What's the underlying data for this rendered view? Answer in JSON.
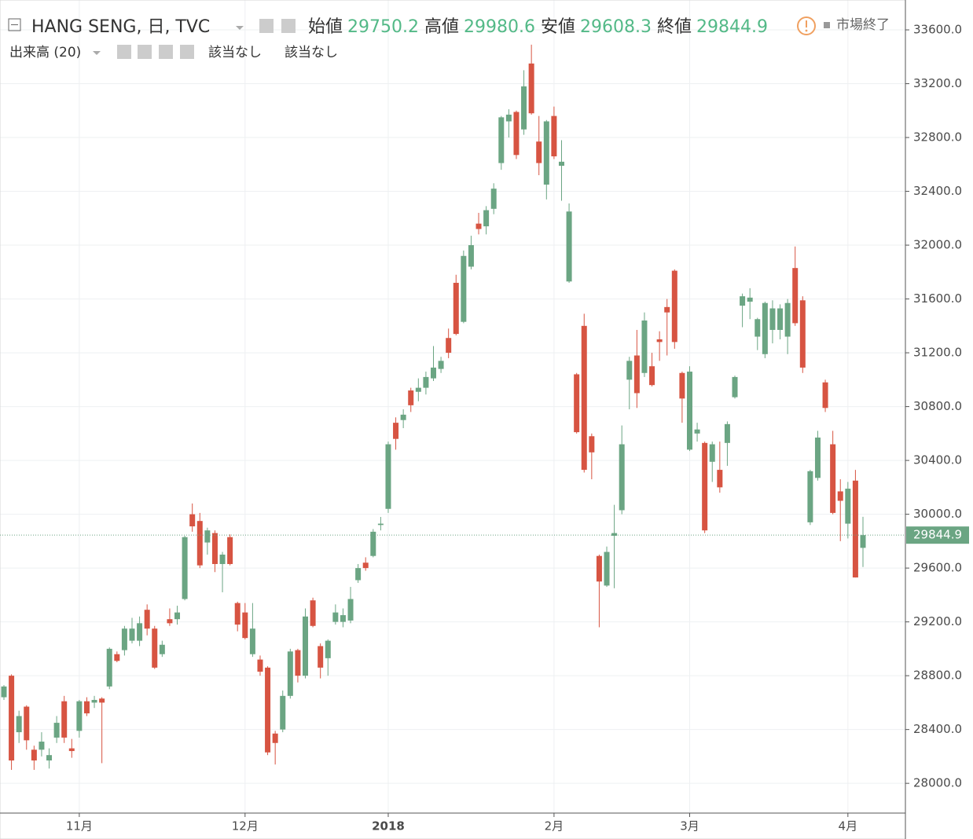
{
  "chart_data": {
    "type": "candlestick",
    "title": "HANG SENG, 日, TVC",
    "ohlc_labels": [
      "始値",
      "高値",
      "安値",
      "終値"
    ],
    "status": "市場終了",
    "indicator": "出来高 (20)",
    "indicator_values": [
      "該当なし",
      "該当なし"
    ],
    "up_color": "#6ba583",
    "down_color": "#d75442",
    "grid": true,
    "categories": [
      null,
      null,
      null,
      null,
      null,
      null,
      null,
      null,
      null,
      null,
      "11月",
      null,
      null,
      null,
      null,
      null,
      null,
      null,
      null,
      null,
      null,
      null,
      null,
      null,
      null,
      null,
      null,
      null,
      null,
      null,
      null,
      null,
      "12月",
      null,
      null,
      null,
      null,
      null,
      null,
      null,
      null,
      null,
      null,
      null,
      null,
      null,
      null,
      null,
      null,
      null,
      null,
      "2018",
      null,
      null,
      null,
      null,
      null,
      null,
      null,
      null,
      null,
      null,
      null,
      null,
      null,
      null,
      null,
      null,
      null,
      null,
      null,
      null,
      null,
      "2月",
      null,
      null,
      null,
      null,
      null,
      null,
      null,
      null,
      null,
      null,
      null,
      null,
      null,
      null,
      null,
      null,
      null,
      "3月",
      null,
      null,
      null,
      null,
      null,
      null,
      null,
      null,
      null,
      null,
      null,
      null,
      null,
      null,
      null,
      null,
      null,
      null,
      null,
      null,
      "4月",
      null,
      null
    ],
    "open": [
      28640,
      28800,
      28380,
      28570,
      28250,
      28250,
      28170,
      28340,
      28610,
      28260,
      28390,
      28610,
      28600,
      28630,
      28720,
      28960,
      28990,
      29060,
      29060,
      29290,
      29150,
      28960,
      29220,
      29220,
      29370,
      30000,
      29950,
      29790,
      29860,
      29630,
      29830,
      29340,
      29270,
      28960,
      28920,
      28860,
      28370,
      28400,
      28650,
      28990,
      28800,
      29360,
      29020,
      28930,
      29200,
      29200,
      29210,
      29510,
      29640,
      29690,
      29920,
      30040,
      30680,
      30700,
      30920,
      30910,
      30940,
      31010,
      31080,
      31310,
      31720,
      31430,
      31840,
      32160,
      32140,
      32270,
      32610,
      32920,
      32990,
      32860,
      33350,
      32770,
      32450,
      32960,
      32590,
      31730,
      31040,
      31400,
      30580,
      29690,
      29470,
      29840,
      30030,
      31000,
      31180,
      31050,
      31100,
      31300,
      31540,
      31810,
      31050,
      30480,
      30600,
      30530,
      30390,
      30330,
      30530,
      30870,
      31550,
      31580,
      31320,
      31190,
      31370,
      31370,
      31320,
      31830,
      31590,
      29940,
      30270,
      30980,
      30520,
      30170,
      29930,
      30250,
      29750.2
    ],
    "high": [
      28730,
      28810,
      28540,
      28580,
      28280,
      28380,
      28260,
      28500,
      28650,
      28330,
      28620,
      28640,
      28650,
      28640,
      29010,
      28980,
      29170,
      29230,
      29240,
      29330,
      29170,
      29060,
      29300,
      29320,
      29840,
      30080,
      30010,
      29900,
      29880,
      29720,
      29850,
      29350,
      29340,
      29340,
      28950,
      28870,
      28390,
      28690,
      29000,
      29000,
      29300,
      29380,
      29040,
      29070,
      29330,
      29300,
      29460,
      29630,
      29680,
      29890,
      29980,
      30540,
      30720,
      30780,
      30940,
      31010,
      31060,
      31250,
      31170,
      31380,
      31780,
      31960,
      32070,
      32240,
      32290,
      32460,
      32960,
      33010,
      33000,
      33300,
      33490,
      32960,
      32930,
      33030,
      32780,
      32310,
      31050,
      31490,
      30600,
      29700,
      29760,
      30070,
      30660,
      31170,
      31370,
      31500,
      31200,
      31360,
      31600,
      31820,
      31060,
      31100,
      30680,
      30540,
      30540,
      30540,
      30690,
      31030,
      31640,
      31680,
      31460,
      31580,
      31590,
      31560,
      31600,
      31990,
      31620,
      30330,
      30620,
      31000,
      30620,
      30260,
      30240,
      30330,
      29980.6
    ],
    "low": [
      28620,
      28100,
      28300,
      28250,
      28100,
      28200,
      28110,
      28300,
      28300,
      28190,
      28340,
      28500,
      28560,
      28150,
      28700,
      28900,
      28950,
      29040,
      29020,
      29100,
      28850,
      28940,
      29170,
      29180,
      29360,
      29870,
      29600,
      29700,
      29570,
      29420,
      29620,
      29130,
      29070,
      28940,
      28800,
      28210,
      28140,
      28380,
      28630,
      28750,
      28780,
      29160,
      28780,
      28800,
      29180,
      29160,
      29190,
      29490,
      29580,
      29680,
      29880,
      30010,
      30480,
      30640,
      30760,
      30840,
      30890,
      30990,
      31050,
      31160,
      31330,
      31420,
      31820,
      32080,
      32080,
      32230,
      32560,
      32800,
      32640,
      32820,
      32970,
      32520,
      32340,
      32640,
      32330,
      31720,
      30600,
      30310,
      30260,
      29160,
      29460,
      29450,
      30000,
      30780,
      30790,
      31020,
      30950,
      31140,
      31180,
      31230,
      30680,
      30470,
      30540,
      29860,
      30240,
      30160,
      30360,
      30860,
      31390,
      31450,
      31220,
      31160,
      31270,
      31300,
      31190,
      31400,
      31050,
      29920,
      30250,
      30760,
      30000,
      29800,
      29820,
      29530,
      29608.3
    ],
    "close": [
      28720,
      28170,
      28500,
      28320,
      28170,
      28310,
      28210,
      28450,
      28340,
      28240,
      28610,
      28520,
      28620,
      28600,
      29000,
      28910,
      29150,
      29150,
      29190,
      29150,
      28860,
      29030,
      29190,
      29270,
      29830,
      29910,
      29620,
      29880,
      29630,
      29700,
      29630,
      29180,
      29080,
      29150,
      28830,
      28230,
      28300,
      28650,
      28980,
      28800,
      29240,
      29170,
      28860,
      29060,
      29270,
      29250,
      29370,
      29600,
      29600,
      29870,
      29930,
      30520,
      30560,
      30740,
      30810,
      30940,
      31020,
      31090,
      31140,
      31200,
      31340,
      31920,
      32000,
      32120,
      32260,
      32420,
      32950,
      32970,
      32670,
      33180,
      32980,
      32610,
      32920,
      32660,
      32620,
      32250,
      30610,
      30330,
      30460,
      29500,
      29720,
      29860,
      30520,
      31140,
      30900,
      31440,
      30960,
      31280,
      31500,
      31280,
      30860,
      31060,
      30630,
      29880,
      30520,
      30200,
      30670,
      31020,
      31620,
      31610,
      31450,
      31570,
      31530,
      31530,
      31570,
      31420,
      31090,
      30320,
      30570,
      30790,
      30010,
      30100,
      30190,
      29530,
      29844.9
    ],
    "ylim": [
      27779,
      33822
    ],
    "yticks": [
      {
        "value": 28000,
        "label": "28000.0"
      },
      {
        "value": 28400,
        "label": "28400.0"
      },
      {
        "value": 28800,
        "label": "28800.0"
      },
      {
        "value": 29200,
        "label": "29200.0"
      },
      {
        "value": 29600,
        "label": "29600.0"
      },
      {
        "value": 30000,
        "label": "30000.0"
      },
      {
        "value": 30400,
        "label": "30400.0"
      },
      {
        "value": 30800,
        "label": "30800.0"
      },
      {
        "value": 31200,
        "label": "31200.0"
      },
      {
        "value": 31600,
        "label": "31600.0"
      },
      {
        "value": 32000,
        "label": "32000.0"
      },
      {
        "value": 32400,
        "label": "32400.0"
      },
      {
        "value": 32800,
        "label": "32800.0"
      },
      {
        "value": 33200,
        "label": "33200.0"
      },
      {
        "value": 33600,
        "label": "33600.0"
      }
    ]
  }
}
